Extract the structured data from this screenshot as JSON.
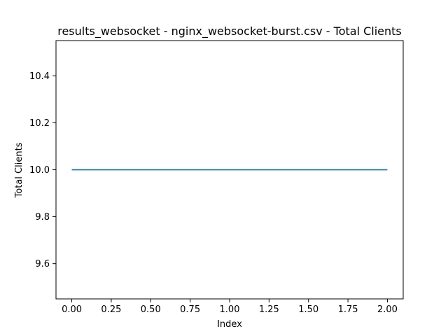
{
  "chart_data": {
    "type": "line",
    "title": "results_websocket - nginx_websocket-burst.csv - Total Clients",
    "xlabel": "Index",
    "ylabel": "Total Clients",
    "xlim": [
      -0.1,
      2.1
    ],
    "ylim": [
      9.45,
      10.55
    ],
    "xticks": [
      0.0,
      0.25,
      0.5,
      0.75,
      1.0,
      1.25,
      1.5,
      1.75,
      2.0
    ],
    "xtick_labels": [
      "0.00",
      "0.25",
      "0.50",
      "0.75",
      "1.00",
      "1.25",
      "1.50",
      "1.75",
      "2.00"
    ],
    "yticks": [
      9.6,
      9.8,
      10.0,
      10.2,
      10.4
    ],
    "ytick_labels": [
      "9.6",
      "9.8",
      "10.0",
      "10.2",
      "10.4"
    ],
    "grid": false,
    "series": [
      {
        "x": [
          0,
          1,
          2
        ],
        "values": [
          10,
          10,
          10
        ],
        "color": "#1f77b4"
      }
    ]
  }
}
